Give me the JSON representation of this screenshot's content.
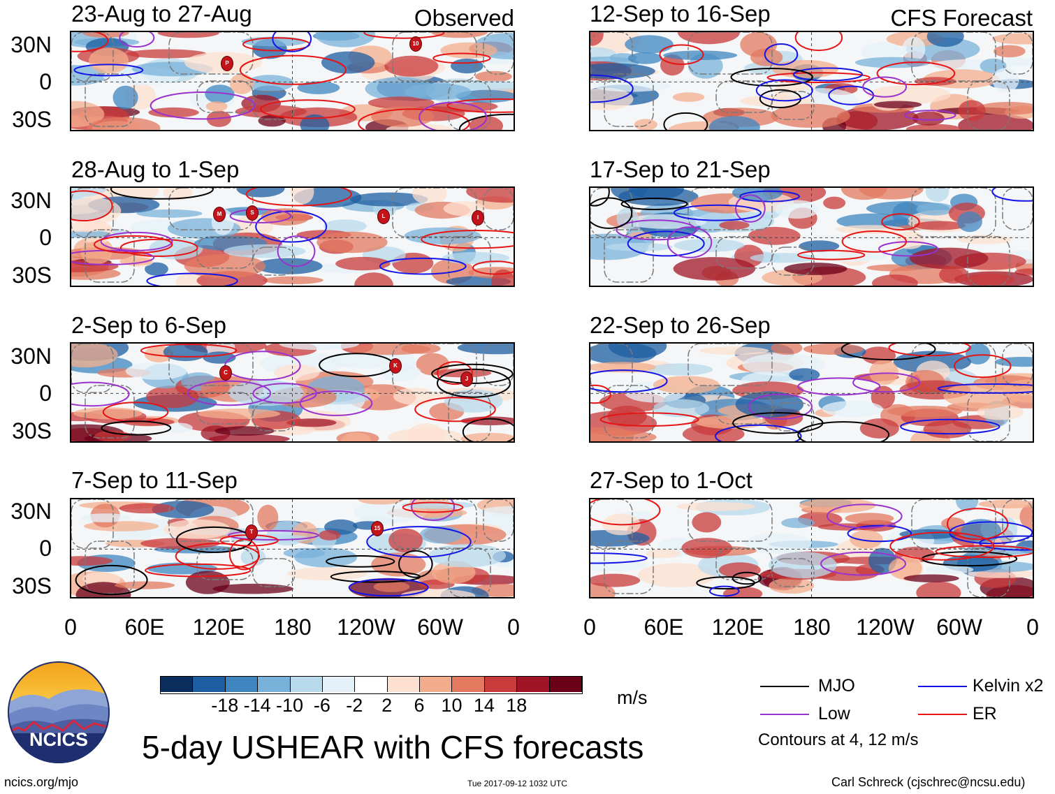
{
  "header": {
    "left_label": "Observed",
    "right_label": "CFS Forecast"
  },
  "panels": [
    {
      "title": "23-Aug to 27-Aug",
      "storms": [
        "P",
        "10"
      ]
    },
    {
      "title": "28-Aug to 1-Sep",
      "storms": [
        "M",
        "S",
        "L",
        "I"
      ]
    },
    {
      "title": "2-Sep to 6-Sep",
      "storms": [
        "C",
        "K",
        "J"
      ]
    },
    {
      "title": "7-Sep to 11-Sep",
      "storms": [
        "T",
        "15"
      ]
    },
    {
      "title": "12-Sep to 16-Sep",
      "storms": []
    },
    {
      "title": "17-Sep to 21-Sep",
      "storms": []
    },
    {
      "title": "22-Sep to 26-Sep",
      "storms": []
    },
    {
      "title": "27-Sep to 1-Oct",
      "storms": []
    }
  ],
  "lat_labels": [
    "30N",
    "0",
    "30S"
  ],
  "lon_labels": [
    "0",
    "60E",
    "120E",
    "180",
    "120W",
    "60W",
    "0"
  ],
  "colorbar": {
    "colors": [
      "#0b2d5b",
      "#1d5ea2",
      "#3f85c0",
      "#79b2d9",
      "#b9d9ec",
      "#e5f1f8",
      "#ffffff",
      "#fde0d0",
      "#f4ad8c",
      "#e37a60",
      "#c93a3b",
      "#a01526",
      "#6b0019"
    ],
    "labels": [
      "-18",
      "-14",
      "-10",
      "-6",
      "-2",
      "2",
      "6",
      "10",
      "14",
      "18"
    ],
    "units": "m/s"
  },
  "legend": {
    "items": [
      {
        "label": "MJO",
        "color": "#000000"
      },
      {
        "label": "Kelvin x2",
        "color": "#1414e6"
      },
      {
        "label": "Low",
        "color": "#9a32cd"
      },
      {
        "label": "ER",
        "color": "#e61414"
      }
    ],
    "note": "Contours at 4, 12 m/s"
  },
  "logo": {
    "text": "NCICS"
  },
  "main_title": "5-day USHEAR with CFS forecasts",
  "footer": {
    "url": "ncics.org/mjo",
    "timestamp": "Tue 2017-09-12 1032 UTC",
    "author": "Carl Schreck (cjschrec@ncsu.edu)"
  }
}
